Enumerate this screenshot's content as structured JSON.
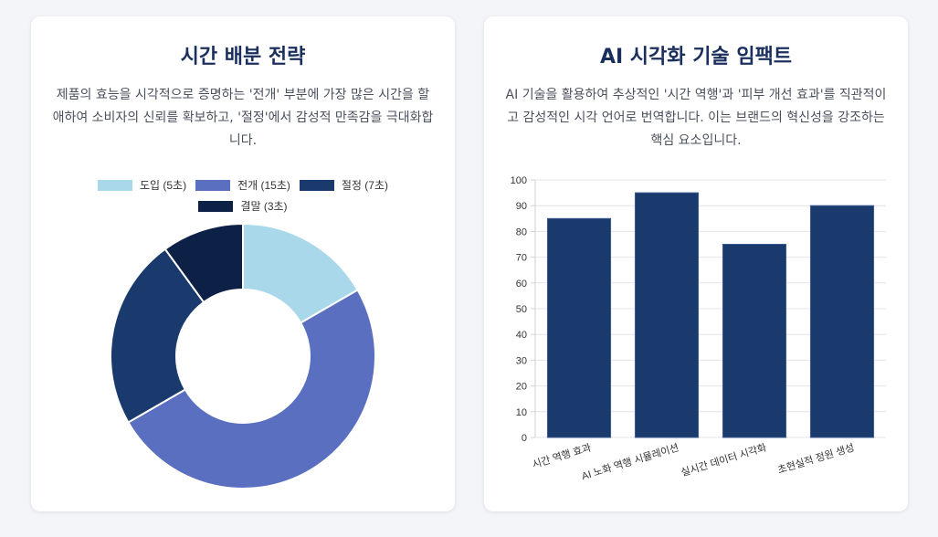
{
  "left": {
    "title": "시간 배분 전략",
    "description": "제품의 효능을 시각적으로 증명하는 '전개' 부분에 가장 많은 시간을 할애하여 소비자의 신뢰를 확보하고, '절정'에서 감성적 만족감을 극대화합니다."
  },
  "right": {
    "title": "AI 시각화 기술 임팩트",
    "description": "AI 기술을 활용하여 추상적인 '시간 역행'과 '피부 개선 효과'를 직관적이고 감성적인 시각 언어로 번역합니다. 이는 브랜드의 혁신성을 강조하는 핵심 요소입니다."
  },
  "chart_data": [
    {
      "type": "pie",
      "categories": [
        "도입 (5초)",
        "전개 (15초)",
        "절정 (7초)",
        "결말 (3초)"
      ],
      "values": [
        5,
        15,
        7,
        3
      ],
      "colors": [
        "#a8d8ea",
        "#5a6fbf",
        "#1a3a6e",
        "#0d2147"
      ],
      "legend": "top"
    },
    {
      "type": "bar",
      "categories": [
        "시간 역행 효과",
        "AI 노화 역행 시뮬레이션",
        "실시간 데이터 시각화",
        "초현실적 정원 생성"
      ],
      "values": [
        85,
        95,
        75,
        90
      ],
      "ylim": [
        0,
        100
      ],
      "yticks": [
        0,
        10,
        20,
        30,
        40,
        50,
        60,
        70,
        80,
        90,
        100
      ],
      "grid": true,
      "color": "#1a3a6e"
    }
  ]
}
